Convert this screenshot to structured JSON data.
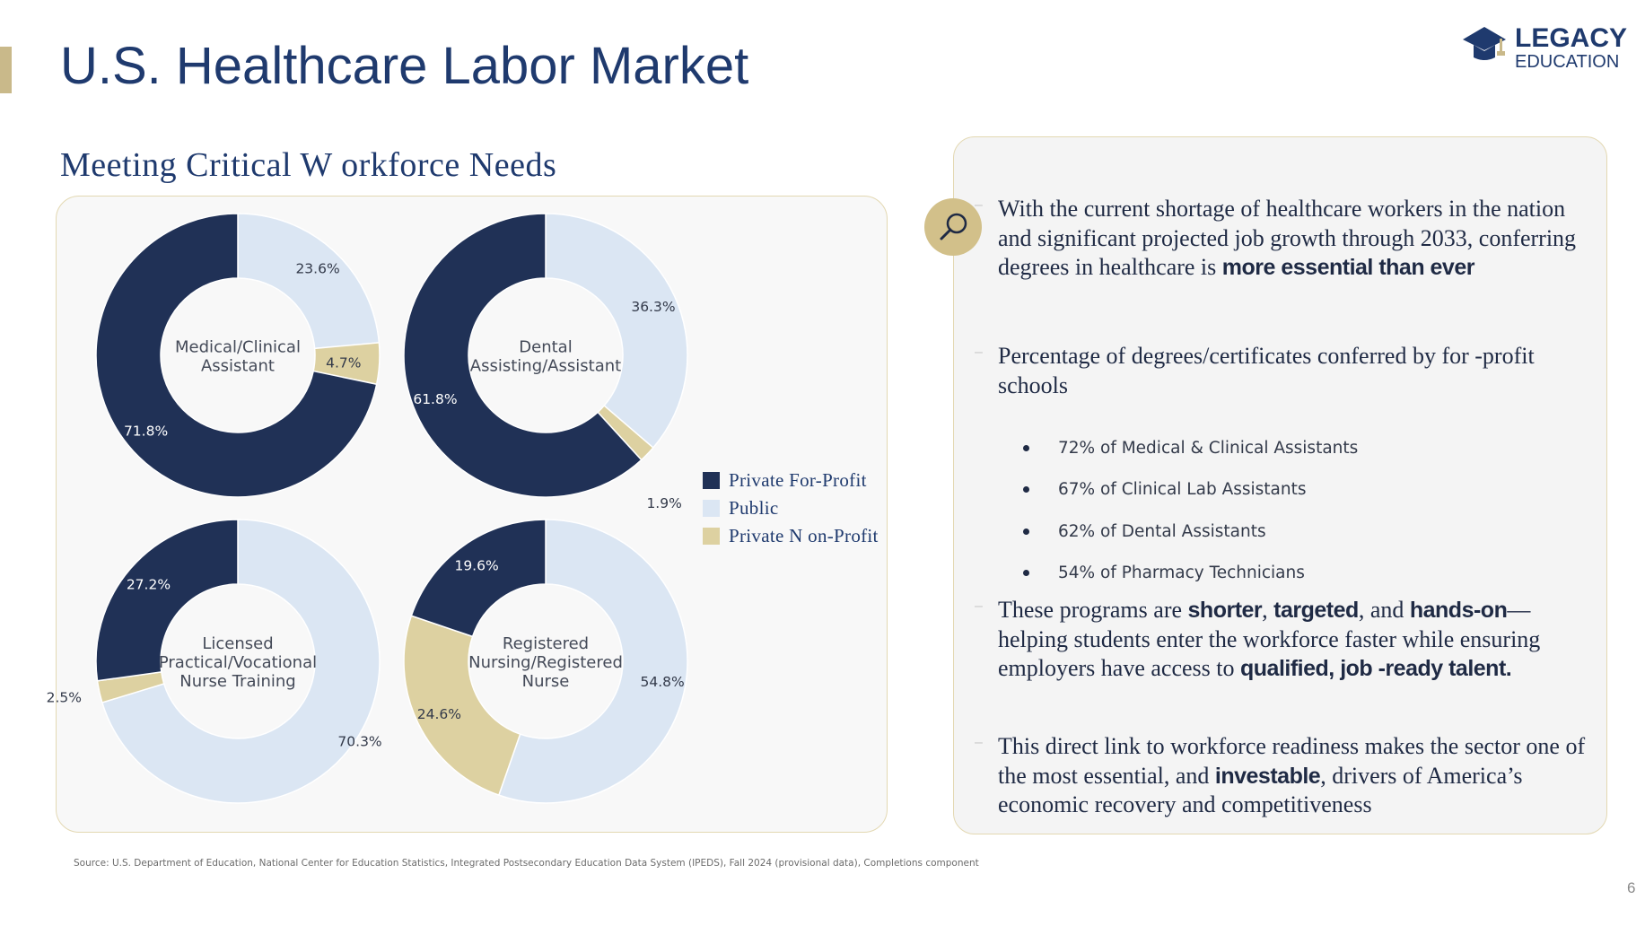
{
  "header": {
    "title": "U.S. Healthcare Labor Market",
    "logo_line1": "LEGACY",
    "logo_line2": "EDUCATION"
  },
  "subtitle": "Meeting Critical W orkforce Needs",
  "colors": {
    "navy": "#203156",
    "light_blue": "#dbe6f3",
    "tan": "#ddd1a1",
    "title_blue": "#1f3a6e"
  },
  "chart_data": {
    "type": "donut",
    "series_names": [
      "Private For-Profit",
      "Public",
      "Private Non-Profit"
    ],
    "charts": [
      {
        "label": [
          "Medical/Clinical",
          "Assistant"
        ],
        "values": [
          71.8,
          23.6,
          4.7
        ],
        "value_labels": [
          "71.8%",
          "23.6%",
          "4.7%"
        ]
      },
      {
        "label": [
          "Dental",
          "Assisting/Assistant"
        ],
        "values": [
          61.8,
          36.3,
          1.9
        ],
        "value_labels": [
          "61.8%",
          "36.3%",
          "1.9%"
        ]
      },
      {
        "label": [
          "Licensed",
          "Practical/Vocational",
          "Nurse Training"
        ],
        "values": [
          27.2,
          70.3,
          2.5
        ],
        "value_labels": [
          "27.2%",
          "70.3%",
          "2.5%"
        ]
      },
      {
        "label": [
          "Registered",
          "Nursing/Registered",
          "Nurse"
        ],
        "values": [
          19.6,
          54.8,
          24.6
        ],
        "value_labels": [
          "19.6%",
          "54.8%",
          "24.6%"
        ]
      }
    ],
    "legend": [
      "Private For-Profit",
      "Public",
      "Private N on-Profit"
    ],
    "legend_position": "right"
  },
  "right_panel": {
    "icon": "magnifier-icon",
    "p1_text": "With the current shortage of healthcare workers in the nation and significant projected job growth through 2033, conferring degrees in healthcare is ",
    "p1_bold": "more essential than ever",
    "p2_text": "Percentage of degrees/certificates conferred by for -profit schools",
    "bullets": [
      "72% of Medical & Clinical Assistants",
      "67% of Clinical Lab Assistants",
      "62% of Dental Assistants",
      "54% of Pharmacy Technicians"
    ],
    "p3_a": "These programs are ",
    "p3_b1": "shorter",
    "p3_c": ", ",
    "p3_b2": "targeted",
    "p3_d": ", and ",
    "p3_b3": "hands-on",
    "p3_e": "— helping students enter the workforce faster while ensuring employers have access to ",
    "p3_b4": "qualified, job -ready talent.",
    "p4_a": "This direct link to workforce readiness makes the sector one of the most essential, and ",
    "p4_b": "investable",
    "p4_c": ", drivers of America’s economic recovery and competitiveness"
  },
  "footer": {
    "source": "Source: U.S. Department of Education, National Center for Education Statistics, Integrated Postsecondary Education Data System (IPEDS), Fall 2024 (provisional data), Completions component",
    "page_number": "6"
  }
}
